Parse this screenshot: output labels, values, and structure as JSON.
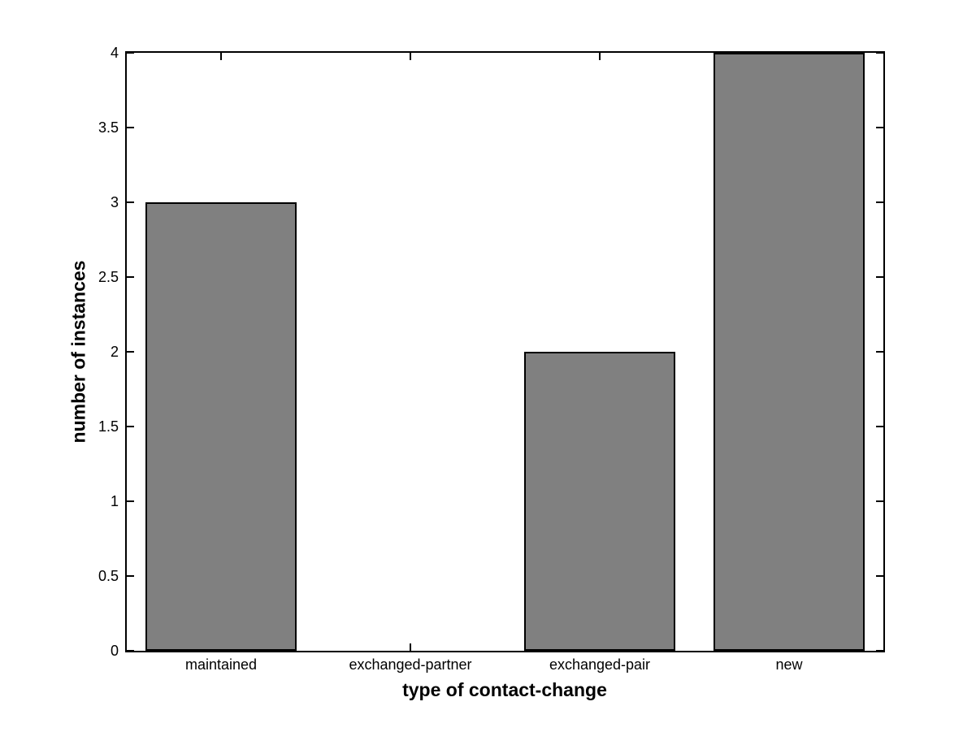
{
  "figure": {
    "background": "#ffffff",
    "axis_color": "#000000"
  },
  "chart_data": {
    "type": "bar",
    "categories": [
      "maintained",
      "exchanged-partner",
      "exchanged-pair",
      "new"
    ],
    "values": [
      3,
      0,
      2,
      4
    ],
    "title": "",
    "xlabel": "type of contact-change",
    "ylabel": "number of instances",
    "ylim": [
      0,
      4
    ],
    "ytick_step": 0.5,
    "ytick_labels": [
      "0",
      "0.5",
      "1",
      "1.5",
      "2",
      "2.5",
      "3",
      "3.5",
      "4"
    ],
    "bar_color": "#808080",
    "bar_edge_color": "#000000",
    "bar_width_fraction": 0.8,
    "grid": false,
    "legend": null
  }
}
